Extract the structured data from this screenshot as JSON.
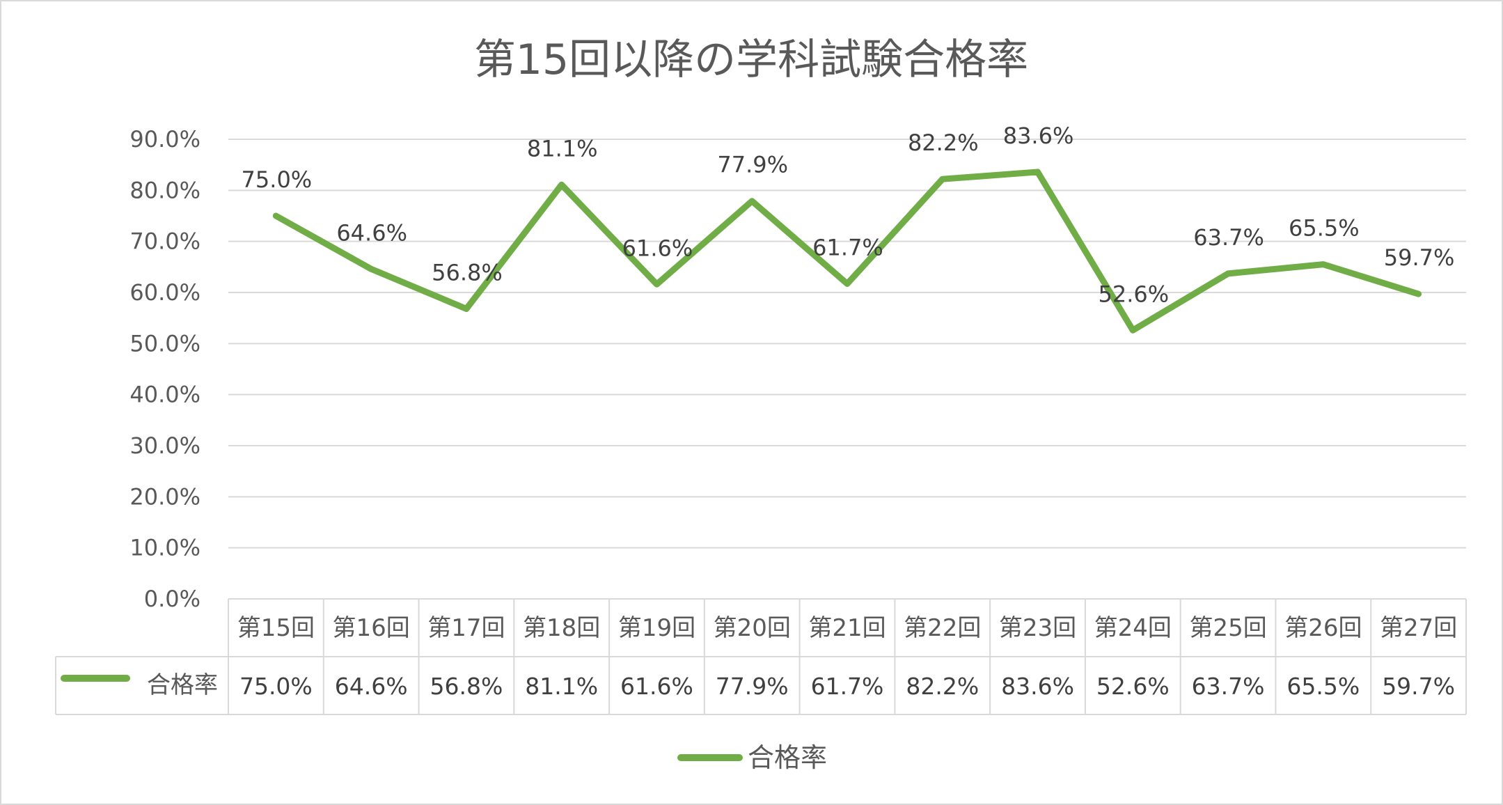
{
  "chart_data": {
    "type": "line",
    "title": "第15回以降の学科試験合格率",
    "categories": [
      "第15回",
      "第16回",
      "第17回",
      "第18回",
      "第19回",
      "第20回",
      "第21回",
      "第22回",
      "第23回",
      "第24回",
      "第25回",
      "第26回",
      "第27回"
    ],
    "series": [
      {
        "name": "合格率",
        "values": [
          75.0,
          64.6,
          56.8,
          81.1,
          61.6,
          77.9,
          61.7,
          82.2,
          83.6,
          52.6,
          63.7,
          65.5,
          59.7
        ],
        "labels": [
          "75.0%",
          "64.6%",
          "56.8%",
          "81.1%",
          "61.6%",
          "77.9%",
          "61.7%",
          "82.2%",
          "83.6%",
          "52.6%",
          "63.7%",
          "65.5%",
          "59.7%"
        ],
        "color": "#70ad47"
      }
    ],
    "y_ticks": [
      "0.0%",
      "10.0%",
      "20.0%",
      "30.0%",
      "40.0%",
      "50.0%",
      "60.0%",
      "70.0%",
      "80.0%",
      "90.0%"
    ],
    "ylim": [
      0,
      90
    ],
    "grid": true,
    "legend_position": "bottom",
    "data_table": true,
    "gridline_color": "#d9d9d9",
    "axis_text_color": "#595959"
  }
}
